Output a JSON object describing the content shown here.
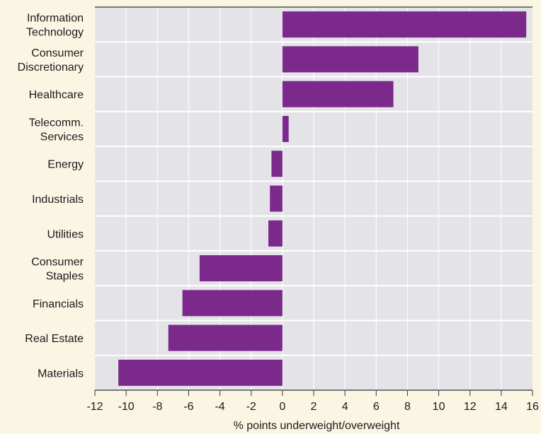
{
  "chart_data": {
    "type": "bar",
    "orientation": "horizontal",
    "categories": [
      [
        "Information",
        "Technology"
      ],
      [
        "Consumer",
        "Discretionary"
      ],
      [
        "Healthcare"
      ],
      [
        "Telecomm.",
        "Services"
      ],
      [
        "Energy"
      ],
      [
        "Industrials"
      ],
      [
        "Utilities"
      ],
      [
        "Consumer",
        "Staples"
      ],
      [
        "Financials"
      ],
      [
        "Real Estate"
      ],
      [
        "Materials"
      ]
    ],
    "values": [
      15.6,
      8.7,
      7.1,
      0.4,
      -0.7,
      -0.8,
      -0.9,
      -5.3,
      -6.4,
      -7.3,
      -10.5
    ],
    "xlim": [
      -12,
      16
    ],
    "xticks": [
      "-12",
      "-10",
      "-8",
      "-6",
      "-4",
      "-2",
      "0",
      "2",
      "4",
      "6",
      "8",
      "10",
      "12",
      "14",
      "16"
    ],
    "xlabel": "% points underweight/overweight",
    "ylabel": "",
    "title": "",
    "grid": "vertical",
    "colors": {
      "bar": "#7b2a8c",
      "plot_background": "#e4e4e8",
      "page_background": "#fbf6e4",
      "grid": "#ffffff",
      "axis": "#333333"
    }
  }
}
